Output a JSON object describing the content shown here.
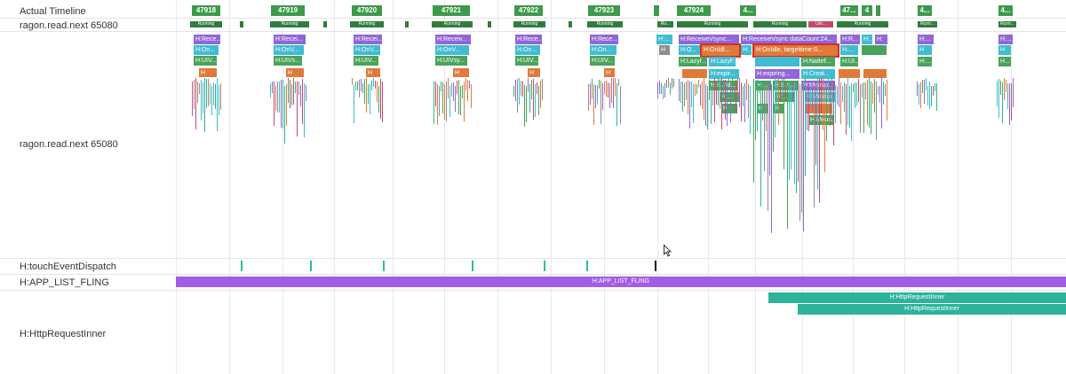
{
  "rows": {
    "timeline": "Actual Timeline",
    "thread_a": "ragon.read.next 65080",
    "thread_b": "ragon.read.next 65080",
    "touch": "H:touchEventDispatch",
    "fling": "H:APP_LIST_FLING",
    "http": "H:HttpRequestInner"
  },
  "frames": [
    "47918",
    "47919",
    "47920",
    "47921",
    "47922",
    "47923",
    "47924",
    "4...",
    "47...",
    "4",
    "4...",
    "4..."
  ],
  "running": [
    "Running",
    "Running",
    "Running",
    "Running",
    "Running",
    "Running",
    "Ru...",
    "Running",
    "Running",
    "Uni...",
    "Running",
    "Runn...",
    "Runn..."
  ],
  "slices": {
    "recv": [
      "H:Rece...",
      "H:Recei...",
      "H:Recei...",
      "H:Receiv...",
      "H:Rece...",
      "H:Rece...",
      "H:...",
      "H:ReceiveVsync...",
      "H:ReceiveVsync dataCount:24...",
      "H:R...",
      "H:",
      "H:...",
      "H:...",
      "H:..."
    ],
    "on": [
      "H:On...",
      "H:OnV...",
      "H:OnV...",
      "H:OnV...",
      "H:On...",
      "H:On...",
      "H",
      "H:O...",
      "H:OnIdl...",
      "H:...",
      "H:OnIdle, targettime:S...",
      "H:...",
      "H",
      "H"
    ],
    "ui": [
      "H:UIV...",
      "H:UIVs...",
      "H:UIV...",
      "H:UIVsy...",
      "H:UIV...",
      "H:UIV...",
      "H:Lazyf...",
      "H:LazyF...",
      "H:Nattef...",
      "H:UI...",
      "H:...",
      "H..."
    ],
    "deep": [
      "H:expir...",
      "H:Build...",
      "H:...",
      "H:expiring...",
      "H:Bui...",
      "H:Creat...",
      "H:Measu...",
      "H:Measu...",
      "H:Meas...",
      "H:...",
      "H:...",
      "H",
      "H",
      "H"
    ]
  },
  "fling_label": "H:APP_LIST_FLING",
  "http_labels": [
    "H:HttpRequestInner",
    "H:HttpRequestInner"
  ]
}
